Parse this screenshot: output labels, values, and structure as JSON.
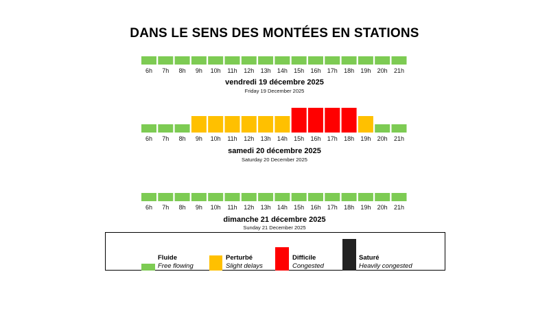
{
  "title": "DANS LE SENS DES MONTÉES EN STATIONS",
  "colors": {
    "fluide": "#7DCB53",
    "perturbe": "#FFC000",
    "difficile": "#FF0000",
    "sature": "#222222"
  },
  "chart_data": [
    {
      "type": "bar",
      "title": "vendredi 19 décembre 2025",
      "subtitle": "Friday 19 December 2025",
      "categories": [
        "6h",
        "7h",
        "8h",
        "9h",
        "10h",
        "11h",
        "12h",
        "13h",
        "14h",
        "15h",
        "16h",
        "17h",
        "18h",
        "19h",
        "20h",
        "21h"
      ],
      "levels": [
        "fluide",
        "fluide",
        "fluide",
        "fluide",
        "fluide",
        "fluide",
        "fluide",
        "fluide",
        "fluide",
        "fluide",
        "fluide",
        "fluide",
        "fluide",
        "fluide",
        "fluide",
        "fluide"
      ],
      "values": [
        1,
        1,
        1,
        1,
        1,
        1,
        1,
        1,
        1,
        1,
        1,
        1,
        1,
        1,
        1,
        1
      ],
      "ylim": [
        0,
        4
      ]
    },
    {
      "type": "bar",
      "title": "samedi 20 décembre 2025",
      "subtitle": "Saturday 20 December 2025",
      "categories": [
        "6h",
        "7h",
        "8h",
        "9h",
        "10h",
        "11h",
        "12h",
        "13h",
        "14h",
        "15h",
        "16h",
        "17h",
        "18h",
        "19h",
        "20h",
        "21h"
      ],
      "levels": [
        "fluide",
        "fluide",
        "fluide",
        "perturbe",
        "perturbe",
        "perturbe",
        "perturbe",
        "perturbe",
        "perturbe",
        "difficile",
        "difficile",
        "difficile",
        "difficile",
        "perturbe",
        "fluide",
        "fluide"
      ],
      "values": [
        1,
        1,
        1,
        2,
        2,
        2,
        2,
        2,
        2,
        3,
        3,
        3,
        3,
        2,
        1,
        1
      ],
      "ylim": [
        0,
        4
      ]
    },
    {
      "type": "bar",
      "title": "dimanche 21 décembre 2025",
      "subtitle": "Sunday 21 December 2025",
      "categories": [
        "6h",
        "7h",
        "8h",
        "9h",
        "10h",
        "11h",
        "12h",
        "13h",
        "14h",
        "15h",
        "16h",
        "17h",
        "18h",
        "19h",
        "20h",
        "21h"
      ],
      "levels": [
        "fluide",
        "fluide",
        "fluide",
        "fluide",
        "fluide",
        "fluide",
        "fluide",
        "fluide",
        "fluide",
        "fluide",
        "fluide",
        "fluide",
        "fluide",
        "fluide",
        "fluide",
        "fluide"
      ],
      "values": [
        1,
        1,
        1,
        1,
        1,
        1,
        1,
        1,
        1,
        1,
        1,
        1,
        1,
        1,
        1,
        1
      ],
      "ylim": [
        0,
        4
      ]
    }
  ],
  "legend": [
    {
      "level": "fluide",
      "value": 1,
      "fr": "Fluide",
      "en": "Free flowing"
    },
    {
      "level": "perturbe",
      "value": 2,
      "fr": "Perturbé",
      "en": "Slight delays"
    },
    {
      "level": "difficile",
      "value": 3,
      "fr": "Difficile",
      "en": "Congested"
    },
    {
      "level": "sature",
      "value": 4,
      "fr": "Saturé",
      "en": "Heavily congested"
    }
  ]
}
